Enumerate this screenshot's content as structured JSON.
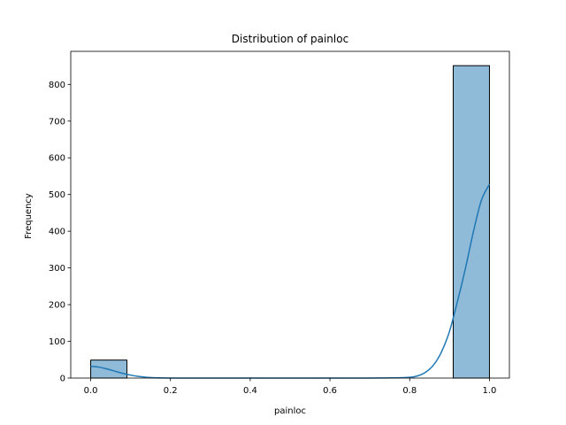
{
  "chart_data": {
    "type": "bar",
    "subtype": "histogram",
    "title": "Distribution of painloc",
    "xlabel": "painloc",
    "ylabel": "Frequency",
    "xlim": [
      -0.05,
      1.05
    ],
    "ylim": [
      0,
      890
    ],
    "xticks": [
      "0.0",
      "0.2",
      "0.4",
      "0.6",
      "0.8",
      "1.0"
    ],
    "yticks": [
      "0",
      "100",
      "200",
      "300",
      "400",
      "500",
      "600",
      "700",
      "800"
    ],
    "bins": [
      {
        "x0": 0.0,
        "x1": 0.0909,
        "count": 49
      },
      {
        "x0": 0.0909,
        "x1": 0.1818,
        "count": 0
      },
      {
        "x0": 0.1818,
        "x1": 0.2727,
        "count": 0
      },
      {
        "x0": 0.2727,
        "x1": 0.3636,
        "count": 0
      },
      {
        "x0": 0.3636,
        "x1": 0.4545,
        "count": 0
      },
      {
        "x0": 0.4545,
        "x1": 0.5455,
        "count": 0
      },
      {
        "x0": 0.5455,
        "x1": 0.6364,
        "count": 0
      },
      {
        "x0": 0.6364,
        "x1": 0.7273,
        "count": 0
      },
      {
        "x0": 0.7273,
        "x1": 0.8182,
        "count": 0
      },
      {
        "x0": 0.8182,
        "x1": 0.9091,
        "count": 0
      },
      {
        "x0": 0.9091,
        "x1": 1.0,
        "count": 851
      }
    ],
    "kde": {
      "x": [
        0.0,
        0.02,
        0.04,
        0.06,
        0.08,
        0.1,
        0.12,
        0.14,
        0.16,
        0.18,
        0.2,
        0.3,
        0.4,
        0.5,
        0.6,
        0.7,
        0.76,
        0.8,
        0.82,
        0.84,
        0.86,
        0.88,
        0.9,
        0.92,
        0.94,
        0.96,
        0.98,
        1.0
      ],
      "y": [
        32,
        30,
        25,
        19,
        13,
        8,
        4.5,
        2.2,
        1,
        0.4,
        0.1,
        0,
        0,
        0,
        0,
        0,
        0.5,
        2,
        6,
        16,
        36,
        72,
        128,
        210,
        300,
        400,
        485,
        528
      ]
    },
    "grid": false,
    "colors": {
      "bar_fill": "#8fbbd9",
      "bar_edge": "#000000",
      "kde_line": "#1f77b4"
    }
  }
}
